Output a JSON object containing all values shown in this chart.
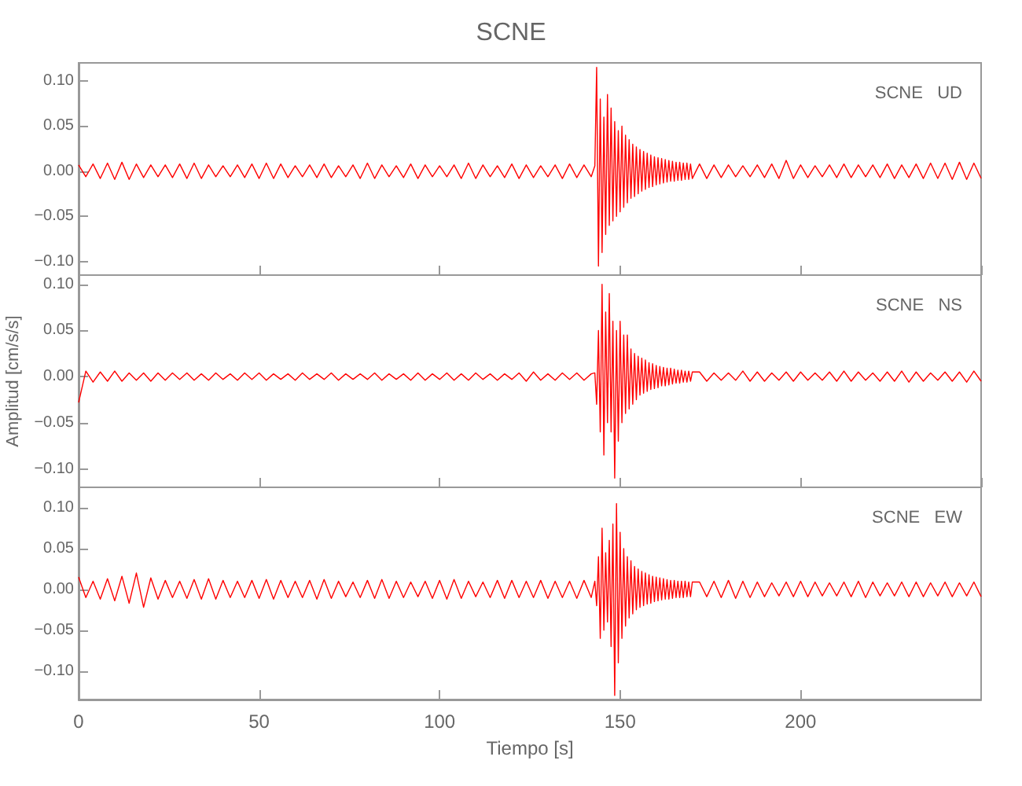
{
  "chart_data": [
    {
      "type": "line",
      "title": "SCNE",
      "annotations": [
        "SCNE   UD"
      ],
      "tick_labels": "y",
      "xlim": [
        0,
        250
      ],
      "ylim": [
        -0.115,
        0.12
      ],
      "yticks": [
        {
          "value": -0.1,
          "label": "−0.10"
        },
        {
          "value": -0.05,
          "label": "−0.05"
        },
        {
          "value": 0,
          "label": "0.00"
        },
        {
          "value": 0.05,
          "label": "0.05"
        },
        {
          "value": 0.1,
          "label": "0.10"
        }
      ],
      "marker": "none",
      "line_style": "solid",
      "x": [
        0,
        2,
        4,
        6,
        8,
        10,
        12,
        14,
        16,
        18,
        20,
        22,
        24,
        26,
        28,
        30,
        32,
        34,
        36,
        38,
        40,
        42,
        44,
        46,
        48,
        50,
        52,
        54,
        56,
        58,
        60,
        62,
        64,
        66,
        68,
        70,
        72,
        74,
        76,
        78,
        80,
        82,
        84,
        86,
        88,
        90,
        92,
        94,
        96,
        98,
        100,
        102,
        104,
        106,
        108,
        110,
        112,
        114,
        116,
        118,
        120,
        122,
        124,
        126,
        128,
        130,
        132,
        134,
        136,
        138,
        140,
        142,
        143,
        143.5,
        144,
        144.5,
        145,
        145.5,
        146,
        146.5,
        147,
        147.5,
        148,
        148.5,
        149,
        149.5,
        150,
        150.5,
        151,
        151.5,
        152,
        152.5,
        153,
        153.5,
        154,
        154.5,
        155,
        155.5,
        156,
        156.5,
        157,
        157.5,
        158,
        158.5,
        159,
        159.5,
        160,
        160.5,
        161,
        161.5,
        162,
        162.5,
        163,
        163.5,
        164,
        164.5,
        165,
        165.5,
        166,
        166.5,
        167,
        167.5,
        168,
        168.5,
        169,
        169.5,
        170,
        172,
        174,
        176,
        178,
        180,
        182,
        184,
        186,
        188,
        190,
        192,
        194,
        196,
        198,
        200,
        202,
        204,
        206,
        208,
        210,
        212,
        214,
        216,
        218,
        220,
        222,
        224,
        226,
        228,
        230,
        232,
        234,
        236,
        238,
        240,
        242,
        244,
        246,
        248,
        250
      ],
      "series": [
        {
          "color": "#ff0000",
          "values": [
            0.007,
            -0.006,
            0.008,
            -0.008,
            0.009,
            -0.009,
            0.01,
            -0.009,
            0.008,
            -0.007,
            0.007,
            -0.006,
            0.007,
            -0.007,
            0.008,
            -0.008,
            0.009,
            -0.008,
            0.007,
            -0.006,
            0.006,
            -0.006,
            0.007,
            -0.007,
            0.008,
            -0.008,
            0.009,
            -0.008,
            0.008,
            -0.007,
            0.006,
            -0.006,
            0.007,
            -0.007,
            0.008,
            -0.007,
            0.006,
            -0.006,
            0.007,
            -0.008,
            0.009,
            -0.008,
            0.007,
            -0.006,
            0.006,
            -0.007,
            0.008,
            -0.008,
            0.007,
            -0.006,
            0.006,
            -0.006,
            0.007,
            -0.008,
            0.009,
            -0.008,
            0.007,
            -0.006,
            0.006,
            -0.007,
            0.008,
            -0.008,
            0.007,
            -0.007,
            0.006,
            -0.006,
            0.007,
            -0.008,
            0.008,
            -0.007,
            0.007,
            -0.006,
            0.006,
            0.115,
            -0.105,
            0.08,
            -0.09,
            0.06,
            -0.07,
            0.085,
            -0.06,
            0.07,
            -0.055,
            0.055,
            -0.05,
            0.045,
            -0.045,
            0.05,
            -0.04,
            0.04,
            -0.035,
            0.035,
            -0.03,
            0.03,
            -0.028,
            0.027,
            -0.025,
            0.024,
            -0.022,
            0.022,
            -0.02,
            0.02,
            -0.018,
            0.018,
            -0.017,
            0.016,
            -0.015,
            0.015,
            -0.014,
            0.014,
            -0.013,
            0.013,
            -0.012,
            0.012,
            -0.011,
            0.011,
            -0.011,
            0.01,
            -0.01,
            0.01,
            -0.01,
            0.009,
            -0.009,
            0.009,
            -0.009,
            0.008,
            -0.008,
            0.008,
            -0.008,
            0.007,
            -0.007,
            0.007,
            -0.006,
            0.006,
            -0.006,
            0.007,
            -0.007,
            0.008,
            -0.008,
            0.012,
            -0.008,
            0.007,
            -0.007,
            0.006,
            -0.006,
            0.007,
            -0.007,
            0.008,
            -0.007,
            0.007,
            -0.006,
            0.007,
            -0.007,
            0.008,
            -0.008,
            0.007,
            -0.007,
            0.008,
            -0.008,
            0.009,
            -0.008,
            0.009,
            -0.009,
            0.01,
            -0.009,
            0.009,
            -0.008
          ]
        }
      ]
    },
    {
      "type": "line",
      "ylabel": "Amplitud [cm/s/s]",
      "annotations": [
        "SCNE   NS"
      ],
      "tick_labels": "y",
      "xlim": [
        0,
        250
      ],
      "ylim": [
        -0.12,
        0.11
      ],
      "yticks": [
        {
          "value": -0.1,
          "label": "−0.10"
        },
        {
          "value": -0.05,
          "label": "−0.05"
        },
        {
          "value": 0,
          "label": "0.00"
        },
        {
          "value": 0.05,
          "label": "0.05"
        },
        {
          "value": 0.1,
          "label": "0.10"
        }
      ],
      "marker": "none",
      "line_style": "solid",
      "x": [
        0,
        2,
        4,
        6,
        8,
        10,
        12,
        14,
        16,
        18,
        20,
        22,
        24,
        26,
        28,
        30,
        32,
        34,
        36,
        38,
        40,
        42,
        44,
        46,
        48,
        50,
        52,
        54,
        56,
        58,
        60,
        62,
        64,
        66,
        68,
        70,
        72,
        74,
        76,
        78,
        80,
        82,
        84,
        86,
        88,
        90,
        92,
        94,
        96,
        98,
        100,
        102,
        104,
        106,
        108,
        110,
        112,
        114,
        116,
        118,
        120,
        122,
        124,
        126,
        128,
        130,
        132,
        134,
        136,
        138,
        140,
        142,
        143,
        143.5,
        144,
        144.5,
        145,
        145.5,
        146,
        146.5,
        147,
        147.5,
        148,
        148.5,
        149,
        149.5,
        150,
        150.5,
        151,
        151.5,
        152,
        152.5,
        153,
        153.5,
        154,
        154.5,
        155,
        155.5,
        156,
        156.5,
        157,
        157.5,
        158,
        158.5,
        159,
        159.5,
        160,
        160.5,
        161,
        161.5,
        162,
        162.5,
        163,
        163.5,
        164,
        164.5,
        165,
        165.5,
        166,
        166.5,
        167,
        167.5,
        168,
        168.5,
        169,
        169.5,
        170,
        172,
        174,
        176,
        178,
        180,
        182,
        184,
        186,
        188,
        190,
        192,
        194,
        196,
        198,
        200,
        202,
        204,
        206,
        208,
        210,
        212,
        214,
        216,
        218,
        220,
        222,
        224,
        226,
        228,
        230,
        232,
        234,
        236,
        238,
        240,
        242,
        244,
        246,
        248,
        250
      ],
      "series": [
        {
          "color": "#ff0000",
          "values": [
            -0.028,
            0.006,
            -0.006,
            0.005,
            -0.005,
            0.006,
            -0.005,
            0.004,
            -0.004,
            0.004,
            -0.005,
            0.004,
            -0.004,
            0.004,
            -0.003,
            0.004,
            -0.004,
            0.003,
            -0.004,
            0.004,
            -0.003,
            0.003,
            -0.004,
            0.004,
            -0.003,
            0.004,
            -0.004,
            0.003,
            -0.003,
            0.003,
            -0.004,
            0.004,
            -0.003,
            0.003,
            -0.003,
            0.004,
            -0.004,
            0.003,
            -0.003,
            0.003,
            -0.003,
            0.004,
            -0.004,
            0.003,
            -0.003,
            0.003,
            -0.004,
            0.004,
            -0.004,
            0.003,
            -0.003,
            0.004,
            -0.004,
            0.003,
            -0.004,
            0.004,
            -0.003,
            0.003,
            -0.004,
            0.003,
            -0.003,
            0.004,
            -0.005,
            0.005,
            -0.004,
            0.003,
            -0.004,
            0.004,
            -0.003,
            0.004,
            -0.004,
            0.003,
            0.004,
            -0.03,
            0.05,
            -0.06,
            0.1,
            -0.085,
            0.07,
            -0.05,
            0.09,
            -0.06,
            0.06,
            -0.11,
            0.05,
            -0.07,
            0.06,
            -0.05,
            0.045,
            -0.04,
            0.045,
            -0.035,
            0.03,
            -0.03,
            0.025,
            -0.025,
            0.022,
            -0.02,
            0.02,
            -0.018,
            0.018,
            -0.016,
            0.015,
            -0.014,
            0.014,
            -0.013,
            0.012,
            -0.012,
            0.011,
            -0.01,
            0.01,
            -0.01,
            0.009,
            -0.009,
            0.009,
            -0.008,
            0.008,
            -0.007,
            0.007,
            -0.007,
            0.007,
            -0.006,
            0.006,
            -0.006,
            0.006,
            -0.005,
            0.005,
            0.005,
            -0.005,
            0.004,
            -0.004,
            0.004,
            -0.004,
            0.006,
            -0.005,
            0.005,
            -0.005,
            0.004,
            -0.004,
            0.005,
            -0.005,
            0.005,
            -0.004,
            0.004,
            -0.004,
            0.005,
            -0.005,
            0.006,
            -0.005,
            0.005,
            -0.004,
            0.004,
            -0.005,
            0.005,
            -0.005,
            0.006,
            -0.006,
            0.005,
            -0.005,
            0.004,
            -0.004,
            0.005,
            -0.005,
            0.005,
            -0.006,
            0.006,
            -0.005
          ]
        }
      ]
    },
    {
      "type": "line",
      "xlabel": "Tiempo [s]",
      "annotations": [
        "SCNE   EW"
      ],
      "xlim": [
        0,
        250
      ],
      "xticks": [
        0,
        50,
        100,
        150,
        200
      ],
      "ylim": [
        -0.135,
        0.125
      ],
      "yticks": [
        {
          "value": -0.1,
          "label": "−0.10"
        },
        {
          "value": -0.05,
          "label": "−0.05"
        },
        {
          "value": 0,
          "label": "0.00"
        },
        {
          "value": 0.05,
          "label": "0.05"
        },
        {
          "value": 0.1,
          "label": "0.10"
        }
      ],
      "marker": "none",
      "line_style": "solid",
      "x": [
        0,
        2,
        4,
        6,
        8,
        10,
        12,
        14,
        16,
        18,
        20,
        22,
        24,
        26,
        28,
        30,
        32,
        34,
        36,
        38,
        40,
        42,
        44,
        46,
        48,
        50,
        52,
        54,
        56,
        58,
        60,
        62,
        64,
        66,
        68,
        70,
        72,
        74,
        76,
        78,
        80,
        82,
        84,
        86,
        88,
        90,
        92,
        94,
        96,
        98,
        100,
        102,
        104,
        106,
        108,
        110,
        112,
        114,
        116,
        118,
        120,
        122,
        124,
        126,
        128,
        130,
        132,
        134,
        136,
        138,
        140,
        142,
        143,
        143.5,
        144,
        144.5,
        145,
        145.5,
        146,
        146.5,
        147,
        147.5,
        148,
        148.5,
        149,
        149.5,
        150,
        150.5,
        151,
        151.5,
        152,
        152.5,
        153,
        153.5,
        154,
        154.5,
        155,
        155.5,
        156,
        156.5,
        157,
        157.5,
        158,
        158.5,
        159,
        159.5,
        160,
        160.5,
        161,
        161.5,
        162,
        162.5,
        163,
        163.5,
        164,
        164.5,
        165,
        165.5,
        166,
        166.5,
        167,
        167.5,
        168,
        168.5,
        169,
        169.5,
        170,
        172,
        174,
        176,
        178,
        180,
        182,
        184,
        186,
        188,
        190,
        192,
        194,
        196,
        198,
        200,
        202,
        204,
        206,
        208,
        210,
        212,
        214,
        216,
        218,
        220,
        222,
        224,
        226,
        228,
        230,
        232,
        234,
        236,
        238,
        240,
        242,
        244,
        246,
        248,
        250
      ],
      "series": [
        {
          "color": "#ff0000",
          "values": [
            0.015,
            -0.01,
            0.01,
            -0.012,
            0.013,
            -0.014,
            0.016,
            -0.017,
            0.02,
            -0.022,
            0.014,
            -0.012,
            0.011,
            -0.01,
            0.01,
            -0.011,
            0.012,
            -0.012,
            0.013,
            -0.012,
            0.011,
            -0.01,
            0.01,
            -0.01,
            0.011,
            -0.011,
            0.012,
            -0.012,
            0.011,
            -0.01,
            0.01,
            -0.01,
            0.011,
            -0.012,
            0.012,
            -0.011,
            0.01,
            -0.009,
            0.009,
            -0.01,
            0.011,
            -0.011,
            0.012,
            -0.011,
            0.01,
            -0.01,
            0.009,
            -0.009,
            0.01,
            -0.011,
            0.011,
            -0.012,
            0.012,
            -0.011,
            0.01,
            -0.009,
            0.009,
            -0.01,
            0.011,
            -0.011,
            0.011,
            -0.01,
            0.01,
            -0.01,
            0.011,
            -0.011,
            0.01,
            -0.01,
            0.01,
            -0.011,
            0.011,
            -0.01,
            0.01,
            -0.02,
            0.04,
            -0.06,
            0.075,
            -0.05,
            0.045,
            -0.04,
            0.06,
            -0.07,
            0.08,
            -0.13,
            0.105,
            -0.09,
            0.07,
            -0.06,
            0.05,
            -0.045,
            0.04,
            -0.035,
            0.035,
            -0.03,
            0.028,
            -0.025,
            0.025,
            -0.022,
            0.022,
            -0.02,
            0.02,
            -0.018,
            0.018,
            -0.017,
            0.016,
            -0.015,
            0.015,
            -0.014,
            0.014,
            -0.013,
            0.013,
            -0.012,
            0.012,
            -0.012,
            0.011,
            -0.011,
            0.011,
            -0.01,
            0.01,
            -0.01,
            0.01,
            -0.01,
            0.01,
            -0.009,
            0.009,
            -0.009,
            0.009,
            0.009,
            -0.009,
            0.01,
            -0.01,
            0.011,
            -0.011,
            0.01,
            -0.01,
            0.009,
            -0.009,
            0.008,
            -0.008,
            0.009,
            -0.009,
            0.01,
            -0.009,
            0.009,
            -0.008,
            0.008,
            -0.008,
            0.009,
            -0.009,
            0.01,
            -0.01,
            0.009,
            -0.008,
            0.008,
            -0.008,
            0.009,
            -0.009,
            0.009,
            -0.009,
            0.008,
            -0.008,
            0.009,
            -0.009,
            0.008,
            -0.008,
            0.009,
            -0.009
          ]
        }
      ]
    }
  ]
}
